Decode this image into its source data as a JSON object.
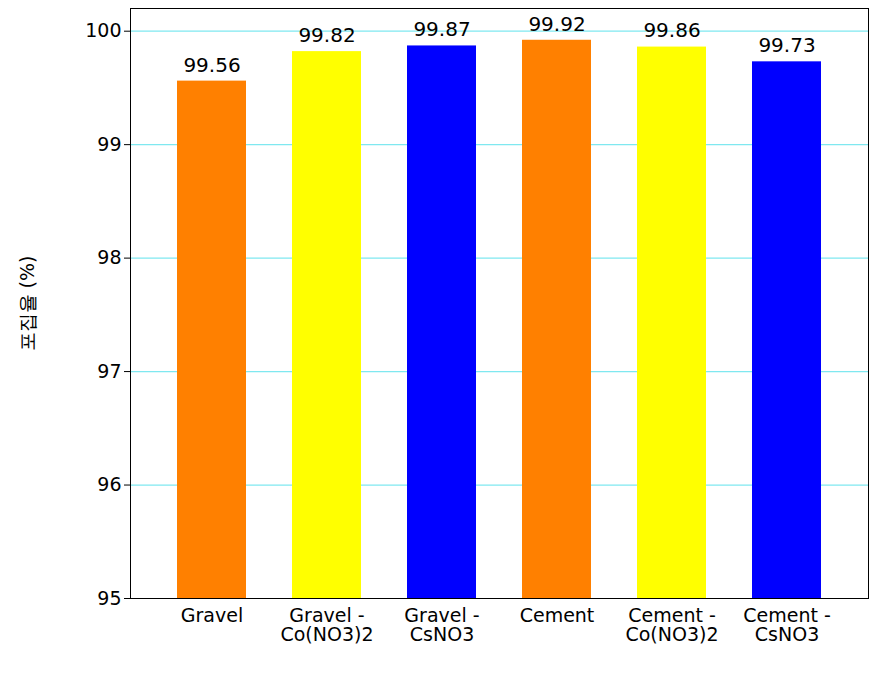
{
  "chart_data": {
    "type": "bar",
    "y_label": "포집율 (%)",
    "categories": [
      "Gravel",
      "Gravel - Co(NO3)2",
      "Gravel - CsNO3",
      "Cement",
      "Cement - Co(NO3)2",
      "Cement - CsNO3"
    ],
    "values": [
      99.56,
      99.82,
      99.87,
      99.92,
      99.86,
      99.73
    ],
    "colors": [
      "#ff8000",
      "#ffff00",
      "#0000ff",
      "#ff8000",
      "#ffff00",
      "#0000ff"
    ],
    "ylim": [
      95,
      100.2
    ],
    "yticks": [
      95,
      96,
      97,
      98,
      99,
      100
    ],
    "grid": true,
    "data_labels": true
  }
}
